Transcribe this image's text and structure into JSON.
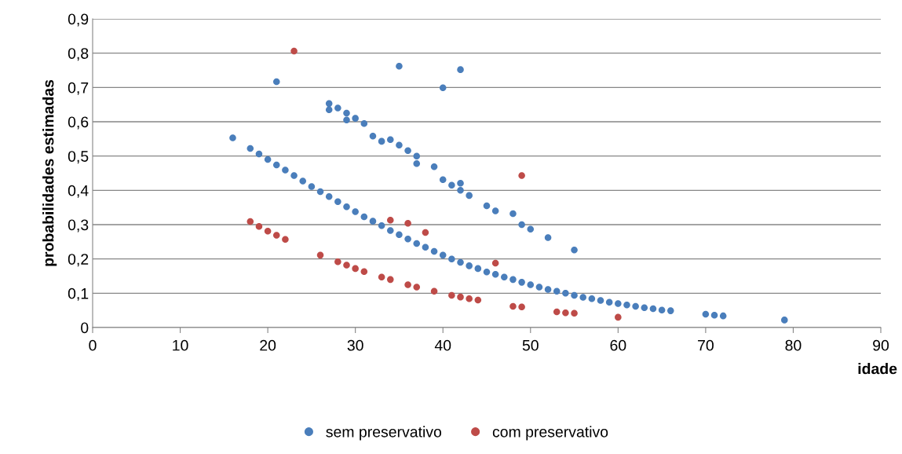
{
  "chart_data": {
    "type": "scatter",
    "xlabel": "idade",
    "ylabel": "probabilidades estimadas",
    "xlim": [
      0,
      90
    ],
    "xticks": [
      0,
      10,
      20,
      30,
      40,
      50,
      60,
      70,
      80,
      90
    ],
    "ylim": [
      0,
      0.9
    ],
    "yticks": [
      {
        "value": 0,
        "label": "0"
      },
      {
        "value": 0.1,
        "label": "0,1"
      },
      {
        "value": 0.2,
        "label": "0,2"
      },
      {
        "value": 0.3,
        "label": "0,3"
      },
      {
        "value": 0.4,
        "label": "0,4"
      },
      {
        "value": 0.5,
        "label": "0,5"
      },
      {
        "value": 0.6,
        "label": "0,6"
      },
      {
        "value": 0.7,
        "label": "0,7"
      },
      {
        "value": 0.8,
        "label": "0,8"
      },
      {
        "value": 0.9,
        "label": "0,9"
      }
    ],
    "grid": "y",
    "legend": "bottom",
    "marker": "circle",
    "series": [
      {
        "name": "sem preservativo",
        "color": "#4a7ebb",
        "x": [
          21,
          35,
          40,
          42,
          27,
          27,
          28,
          29,
          29,
          30,
          31,
          32,
          33,
          34,
          35,
          36,
          37,
          37,
          39,
          40,
          41,
          42,
          42,
          43,
          45,
          46,
          48,
          49,
          50,
          52,
          55,
          16,
          18,
          19,
          20,
          21,
          22,
          23,
          24,
          25,
          26,
          27,
          28,
          29,
          30,
          31,
          32,
          33,
          34,
          35,
          36,
          37,
          38,
          39,
          40,
          41,
          42,
          43,
          44,
          45,
          46,
          47,
          48,
          49,
          50,
          51,
          52,
          53,
          54,
          55,
          56,
          57,
          58,
          59,
          60,
          61,
          62,
          63,
          64,
          65,
          66,
          70,
          71,
          72,
          79
        ],
        "values": [
          0.717,
          0.762,
          0.699,
          0.752,
          0.653,
          0.635,
          0.64,
          0.625,
          0.605,
          0.61,
          0.595,
          0.558,
          0.543,
          0.548,
          0.532,
          0.516,
          0.5,
          0.478,
          0.469,
          0.431,
          0.415,
          0.421,
          0.4,
          0.385,
          0.355,
          0.34,
          0.332,
          0.3,
          0.287,
          0.262,
          0.226,
          0.553,
          0.522,
          0.506,
          0.49,
          0.474,
          0.459,
          0.443,
          0.427,
          0.411,
          0.396,
          0.382,
          0.367,
          0.352,
          0.338,
          0.323,
          0.31,
          0.297,
          0.283,
          0.271,
          0.258,
          0.245,
          0.234,
          0.222,
          0.211,
          0.2,
          0.19,
          0.18,
          0.172,
          0.162,
          0.155,
          0.147,
          0.14,
          0.132,
          0.125,
          0.118,
          0.111,
          0.106,
          0.1,
          0.094,
          0.088,
          0.084,
          0.079,
          0.074,
          0.07,
          0.066,
          0.062,
          0.058,
          0.055,
          0.051,
          0.049,
          0.039,
          0.036,
          0.034,
          0.022
        ]
      },
      {
        "name": "com preservativo",
        "color": "#be4b48",
        "x": [
          23,
          18,
          19,
          20,
          21,
          22,
          26,
          28,
          29,
          30,
          31,
          33,
          34,
          34,
          36,
          36,
          37,
          38,
          39,
          41,
          42,
          43,
          44,
          46,
          48,
          49,
          49,
          53,
          54,
          55,
          60
        ],
        "values": [
          0.806,
          0.309,
          0.295,
          0.281,
          0.269,
          0.257,
          0.211,
          0.192,
          0.182,
          0.172,
          0.163,
          0.147,
          0.14,
          0.313,
          0.304,
          0.125,
          0.118,
          0.277,
          0.106,
          0.094,
          0.089,
          0.084,
          0.08,
          0.188,
          0.062,
          0.06,
          0.443,
          0.046,
          0.043,
          0.042,
          0.03
        ]
      }
    ]
  }
}
